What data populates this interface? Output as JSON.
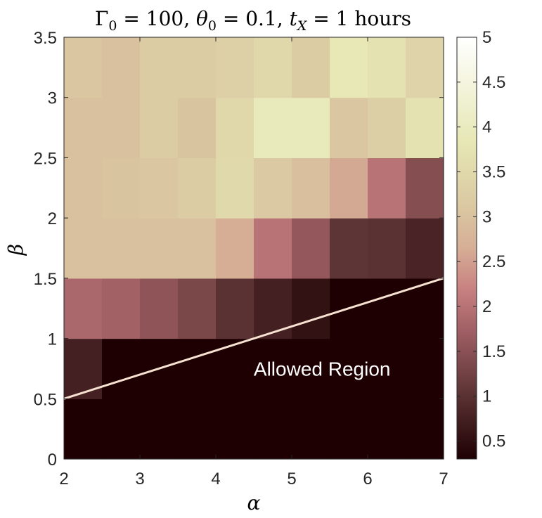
{
  "chart_data": {
    "type": "heatmap",
    "title": "Γ0 = 100, θ0 = 0.1, tX = 1 hours",
    "title_parts": {
      "gamma": "Γ",
      "gamma_sub": "0",
      "gamma_eq": " = 100, ",
      "theta": "θ",
      "theta_sub": "0",
      "theta_eq": " = 0.1, ",
      "t": "t",
      "t_sub": "X",
      "t_eq": " = 1 hours"
    },
    "xlabel": "α",
    "ylabel": "β",
    "xlim": [
      2,
      7
    ],
    "ylim": [
      0,
      3.5
    ],
    "x_ticks": [
      2,
      3,
      4,
      5,
      6,
      7
    ],
    "y_ticks": [
      0,
      0.5,
      1,
      1.5,
      2,
      2.5,
      3,
      3.5
    ],
    "y_tick_labels": [
      "0",
      "0.5",
      "1",
      "1.5",
      "2",
      "2.5",
      "3",
      "3.5"
    ],
    "x_edges": [
      2,
      2.5,
      3,
      3.5,
      4,
      4.5,
      5,
      5.5,
      6,
      6.5,
      7
    ],
    "y_edges": [
      0,
      0.5,
      1,
      1.5,
      2,
      2.5,
      3,
      3.5
    ],
    "values": [
      [
        0.3,
        0.3,
        0.3,
        0.3,
        0.3,
        0.3,
        0.3,
        0.3,
        0.3,
        0.3
      ],
      [
        0.75,
        0.3,
        0.3,
        0.3,
        0.3,
        0.3,
        0.3,
        0.3,
        0.3,
        0.3
      ],
      [
        1.85,
        1.75,
        1.55,
        1.35,
        1.0,
        0.75,
        0.55,
        0.3,
        0.3,
        0.3
      ],
      [
        3.0,
        3.0,
        3.0,
        3.0,
        2.65,
        2.0,
        1.6,
        1.05,
        1.0,
        0.8
      ],
      [
        3.0,
        3.05,
        3.1,
        3.2,
        3.5,
        3.15,
        2.95,
        2.6,
        2.0,
        1.45
      ],
      [
        3.0,
        3.0,
        3.2,
        3.05,
        3.45,
        3.95,
        3.95,
        3.1,
        3.25,
        3.7
      ],
      [
        3.1,
        3.0,
        3.2,
        3.2,
        3.3,
        3.45,
        3.2,
        3.85,
        3.7,
        3.4
      ]
    ],
    "colorbar": {
      "limits": [
        0.3,
        5
      ],
      "ticks": [
        0.5,
        1,
        1.5,
        2,
        2.5,
        3,
        3.5,
        4,
        4.5,
        5
      ],
      "tick_labels": [
        "0.5",
        "1",
        "1.5",
        "2",
        "2.5",
        "3",
        "3.5",
        "4",
        "4.5",
        "5"
      ],
      "colors": [
        "#1e0003",
        "#5a3233",
        "#9e5e63",
        "#c78080",
        "#d6ae96",
        "#dac8a2",
        "#e6e7b4",
        "#ffffff"
      ],
      "stops": [
        0,
        0.15,
        0.3,
        0.4,
        0.5,
        0.6,
        0.75,
        1
      ]
    },
    "boundary_line": {
      "x": [
        2,
        7
      ],
      "y": [
        0.5,
        1.5
      ],
      "color": "#f7e1d0"
    },
    "annotation": {
      "text": "Allowed Region",
      "x": 5.4,
      "y": 0.75
    },
    "grid": false
  }
}
